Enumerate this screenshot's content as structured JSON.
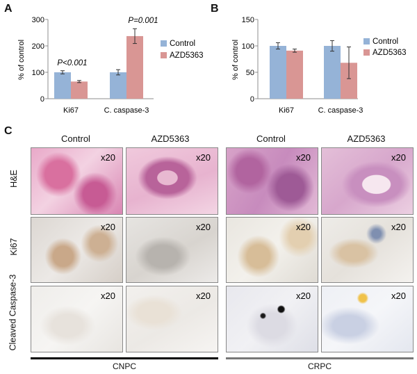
{
  "panels": {
    "a": {
      "letter": "A",
      "ylabel": "% of control",
      "yticks": [
        "0",
        "100",
        "200",
        "300"
      ],
      "categories": [
        "Ki67",
        "C. caspase-3"
      ],
      "annotations": [
        "P<0.001",
        "P=0.001"
      ],
      "legend": [
        "Control",
        "AZD5363"
      ]
    },
    "b": {
      "letter": "B",
      "ylabel": "% of control",
      "yticks": [
        "0",
        "50",
        "100",
        "150"
      ],
      "categories": [
        "Ki67",
        "C. caspase-3"
      ],
      "legend": [
        "Control",
        "AZD5363"
      ]
    },
    "c": {
      "letter": "C",
      "column_headers": [
        "Control",
        "AZD5363",
        "Control",
        "AZD5363"
      ],
      "row_labels": [
        "H&E",
        "Ki67",
        "Cleaved Caspase-3"
      ],
      "magnification": "x20",
      "groups": [
        "CNPC",
        "CRPC"
      ]
    }
  },
  "colors": {
    "control": "#95b3d7",
    "azd5363": "#d99694",
    "axis": "#8c8c8c"
  },
  "chart_data": [
    {
      "type": "bar",
      "categories": [
        "Ki67",
        "C. caspase-3"
      ],
      "series": [
        {
          "name": "Control",
          "values": [
            100,
            100
          ],
          "errors": [
            6,
            10
          ]
        },
        {
          "name": "AZD5363",
          "values": [
            65,
            237
          ],
          "errors": [
            4,
            28
          ]
        }
      ],
      "xlabel": "",
      "ylabel": "% of control",
      "ylim": [
        0,
        300
      ],
      "annotations": [
        "P<0.001",
        "P=0.001"
      ],
      "legend_position": "right"
    },
    {
      "type": "bar",
      "categories": [
        "Ki67",
        "C. caspase-3"
      ],
      "series": [
        {
          "name": "Control",
          "values": [
            100,
            100
          ],
          "errors": [
            6,
            10
          ]
        },
        {
          "name": "AZD5363",
          "values": [
            91,
            68
          ],
          "errors": [
            3,
            30
          ]
        }
      ],
      "xlabel": "",
      "ylabel": "% of control",
      "ylim": [
        0,
        150
      ],
      "legend_position": "right"
    }
  ]
}
